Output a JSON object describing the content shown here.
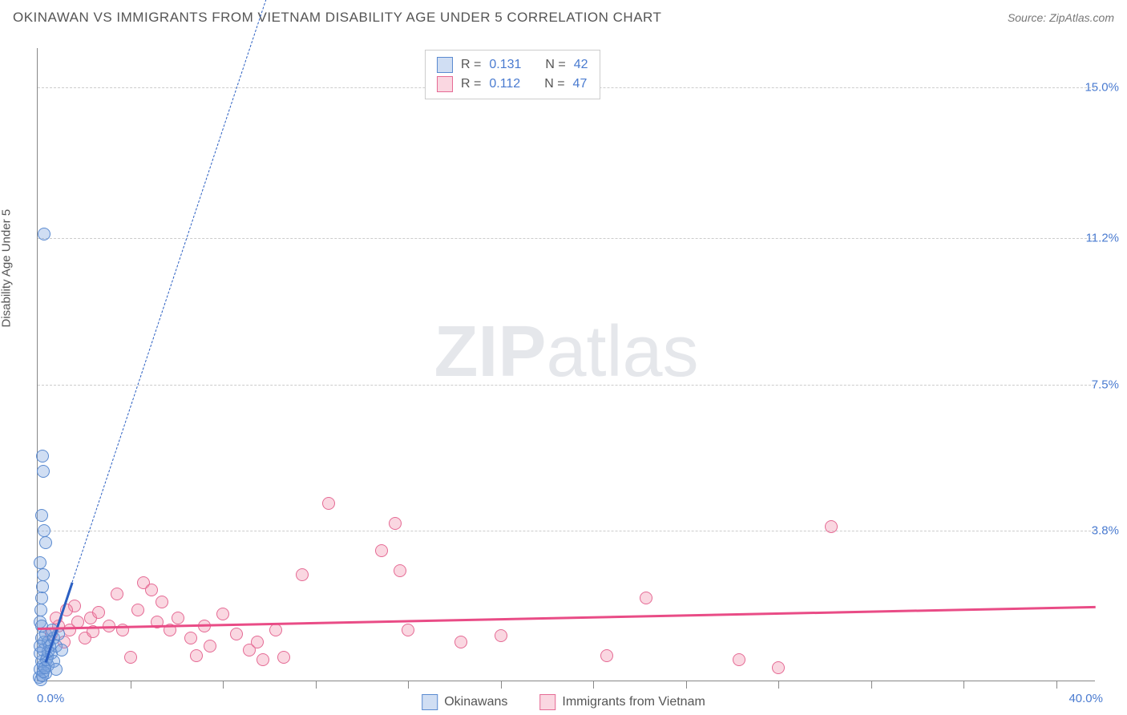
{
  "header": {
    "title": "OKINAWAN VS IMMIGRANTS FROM VIETNAM DISABILITY AGE UNDER 5 CORRELATION CHART",
    "source_prefix": "Source: ",
    "source_name": "ZipAtlas.com"
  },
  "watermark": {
    "zip": "ZIP",
    "atlas": "atlas"
  },
  "chart": {
    "type": "scatter",
    "xlim": [
      0,
      40
    ],
    "ylim": [
      0,
      16
    ],
    "x_min_label": "0.0%",
    "x_max_label": "40.0%",
    "y_ticks": [
      {
        "value": 3.8,
        "label": "3.8%"
      },
      {
        "value": 7.5,
        "label": "7.5%"
      },
      {
        "value": 11.2,
        "label": "11.2%"
      },
      {
        "value": 15.0,
        "label": "15.0%"
      }
    ],
    "x_tick_positions": [
      3.5,
      7,
      10.5,
      14,
      17.5,
      21,
      24.5,
      28,
      31.5,
      35,
      38.5
    ],
    "y_axis_label": "Disability Age Under 5",
    "grid_color": "#cccccc",
    "axis_color": "#888888",
    "tick_label_color": "#4a7bd0",
    "background_color": "#ffffff"
  },
  "series": {
    "okinawans": {
      "label": "Okinawans",
      "fill": "rgba(120,160,220,0.35)",
      "stroke": "#5a8ad0",
      "trend_color": "#2b5fc2",
      "trend_dash": "6,6",
      "trend": {
        "x1": 0.3,
        "y1": 0.5,
        "x2": 11.5,
        "y2": 23,
        "solid_until_x": 1.3
      },
      "R_label": "R = ",
      "R_value": "0.131",
      "N_label": "N = ",
      "N_value": "42",
      "points": [
        [
          0.05,
          0.1
        ],
        [
          0.1,
          0.3
        ],
        [
          0.15,
          0.5
        ],
        [
          0.2,
          0.8
        ],
        [
          0.22,
          0.4
        ],
        [
          0.25,
          1.0
        ],
        [
          0.3,
          1.2
        ],
        [
          0.08,
          1.5
        ],
        [
          0.12,
          1.8
        ],
        [
          0.15,
          2.1
        ],
        [
          0.18,
          2.4
        ],
        [
          0.2,
          2.7
        ],
        [
          0.1,
          3.0
        ],
        [
          0.3,
          3.5
        ],
        [
          0.25,
          3.8
        ],
        [
          0.15,
          4.2
        ],
        [
          0.2,
          5.3
        ],
        [
          0.18,
          5.7
        ],
        [
          0.25,
          11.3
        ],
        [
          0.4,
          1.0
        ],
        [
          0.5,
          0.7
        ],
        [
          0.6,
          1.1
        ],
        [
          0.7,
          0.9
        ],
        [
          0.8,
          1.2
        ],
        [
          0.35,
          0.6
        ],
        [
          0.45,
          0.9
        ],
        [
          0.55,
          1.3
        ],
        [
          0.3,
          0.2
        ],
        [
          0.4,
          0.4
        ],
        [
          0.12,
          0.05
        ],
        [
          0.18,
          0.15
        ],
        [
          0.22,
          0.25
        ],
        [
          0.28,
          0.35
        ],
        [
          0.32,
          0.55
        ],
        [
          0.38,
          0.75
        ],
        [
          0.1,
          0.7
        ],
        [
          0.14,
          1.1
        ],
        [
          0.16,
          1.4
        ],
        [
          0.08,
          0.9
        ],
        [
          0.6,
          0.5
        ],
        [
          0.7,
          0.3
        ],
        [
          0.9,
          0.8
        ]
      ]
    },
    "vietnam": {
      "label": "Immigrants from Vietnam",
      "fill": "rgba(240,140,170,0.35)",
      "stroke": "#e56a94",
      "trend_color": "#e94c86",
      "trend_dash": "none",
      "trend": {
        "x1": 0,
        "y1": 1.35,
        "x2": 40,
        "y2": 1.9
      },
      "R_label": "R = ",
      "R_value": "0.112",
      "N_label": "N = ",
      "N_value": "47",
      "points": [
        [
          0.5,
          1.2
        ],
        [
          0.8,
          1.4
        ],
        [
          1.0,
          1.0
        ],
        [
          1.2,
          1.3
        ],
        [
          1.5,
          1.5
        ],
        [
          1.8,
          1.1
        ],
        [
          2.0,
          1.6
        ],
        [
          2.3,
          1.75
        ],
        [
          2.7,
          1.4
        ],
        [
          3.0,
          2.2
        ],
        [
          3.2,
          1.3
        ],
        [
          3.5,
          0.6
        ],
        [
          4.0,
          2.5
        ],
        [
          4.3,
          2.3
        ],
        [
          4.5,
          1.5
        ],
        [
          5.0,
          1.3
        ],
        [
          5.3,
          1.6
        ],
        [
          5.8,
          1.1
        ],
        [
          6.0,
          0.65
        ],
        [
          6.5,
          0.9
        ],
        [
          7.0,
          1.7
        ],
        [
          7.5,
          1.2
        ],
        [
          8.0,
          0.8
        ],
        [
          8.5,
          0.55
        ],
        [
          9.0,
          1.3
        ],
        [
          9.3,
          0.6
        ],
        [
          10.0,
          2.7
        ],
        [
          11.0,
          4.5
        ],
        [
          13.0,
          3.3
        ],
        [
          13.5,
          4.0
        ],
        [
          13.7,
          2.8
        ],
        [
          14.0,
          1.3
        ],
        [
          16.0,
          1.0
        ],
        [
          17.5,
          1.15
        ],
        [
          21.5,
          0.65
        ],
        [
          23.0,
          2.1
        ],
        [
          26.5,
          0.55
        ],
        [
          28.0,
          0.35
        ],
        [
          30.0,
          3.9
        ],
        [
          1.4,
          1.9
        ],
        [
          2.1,
          1.25
        ],
        [
          4.7,
          2.0
        ],
        [
          3.8,
          1.8
        ],
        [
          6.3,
          1.4
        ],
        [
          8.3,
          1.0
        ],
        [
          0.7,
          1.6
        ],
        [
          1.1,
          1.8
        ]
      ]
    }
  },
  "legend": {
    "item1": "Okinawans",
    "item2": "Immigrants from Vietnam"
  }
}
